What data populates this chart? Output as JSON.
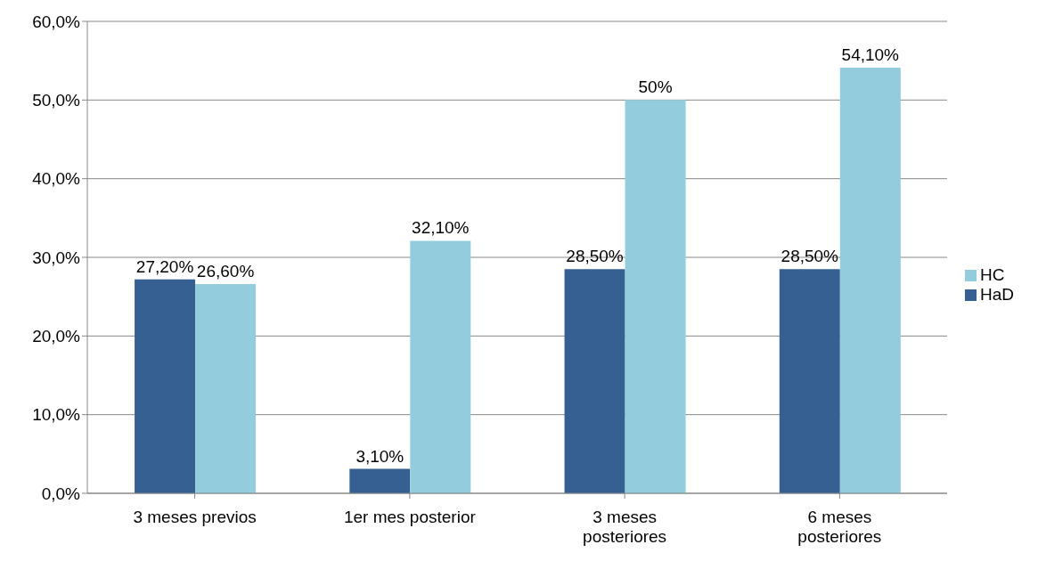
{
  "chart_data": {
    "type": "bar",
    "categories": [
      "3 meses previos",
      "1er mes posterior",
      "3 meses posteriores",
      "6 meses posteriores"
    ],
    "series": [
      {
        "name": "HaD",
        "color": "#376092",
        "values": [
          27.2,
          3.1,
          28.5,
          28.5
        ],
        "value_labels": [
          "27,20%",
          "3,10%",
          "28,50%",
          "28,50%"
        ]
      },
      {
        "name": "HC",
        "color": "#93cddd",
        "values": [
          26.6,
          32.1,
          50,
          54.1
        ],
        "value_labels": [
          "26,60%",
          "32,10%",
          "50%",
          "54,10%"
        ]
      }
    ],
    "ylim": [
      0,
      60
    ],
    "yticks": [
      {
        "value": 0,
        "label": "0,0%"
      },
      {
        "value": 10,
        "label": "10,0%"
      },
      {
        "value": 20,
        "label": "20,0%"
      },
      {
        "value": 30,
        "label": "30,0%"
      },
      {
        "value": 40,
        "label": "40,0%"
      },
      {
        "value": 50,
        "label": "50,0%"
      },
      {
        "value": 60,
        "label": "60,0%"
      }
    ],
    "grid": "y",
    "legend": "right"
  }
}
